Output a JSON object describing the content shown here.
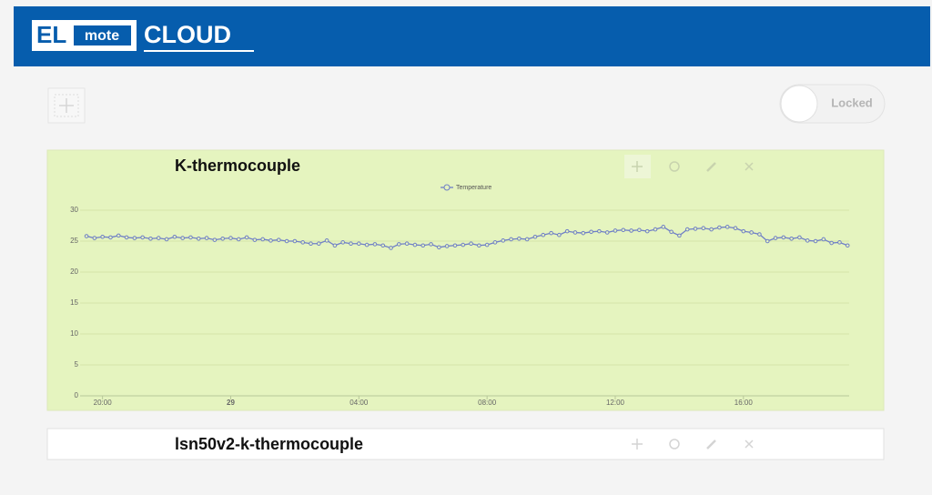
{
  "header": {
    "logo_el": "EL",
    "logo_mote": "mote",
    "logo_cloud": "CLOUD"
  },
  "lock_label": "Locked",
  "widgets": [
    {
      "title": "K-thermocouple"
    },
    {
      "title": "lsn50v2-k-thermocouple"
    }
  ],
  "chart_data": {
    "type": "line",
    "series": [
      {
        "name": "Temperature",
        "color": "#6f7fc6",
        "x": [
          19.5,
          19.75,
          20,
          20.25,
          20.5,
          20.75,
          21,
          21.25,
          21.5,
          21.75,
          22,
          22.25,
          22.5,
          22.75,
          23,
          23.25,
          23.5,
          23.75,
          24,
          24.25,
          24.5,
          24.75,
          25,
          25.25,
          25.5,
          25.75,
          26,
          26.25,
          26.5,
          26.75,
          27,
          27.25,
          27.5,
          27.75,
          28,
          28.25,
          28.5,
          28.75,
          29,
          29.25,
          29.5,
          29.75,
          30,
          30.25,
          30.5,
          30.75,
          31,
          31.25,
          31.5,
          31.75,
          32,
          32.25,
          32.5,
          32.75,
          33,
          33.25,
          33.5,
          33.75,
          34,
          34.25,
          34.5,
          34.75,
          35,
          35.25,
          35.5,
          35.75,
          36,
          36.25,
          36.5,
          36.75,
          37,
          37.25,
          37.5,
          37.75,
          38,
          38.25,
          38.5,
          38.75,
          39,
          39.25,
          39.5,
          39.75,
          40,
          40.25,
          40.5,
          40.75,
          41,
          41.25,
          41.5,
          41.75,
          42,
          42.25,
          42.5,
          42.75,
          43,
          43.25
        ],
        "values": [
          25.8,
          25.5,
          25.7,
          25.6,
          25.9,
          25.6,
          25.5,
          25.6,
          25.4,
          25.5,
          25.3,
          25.7,
          25.5,
          25.6,
          25.4,
          25.5,
          25.2,
          25.4,
          25.5,
          25.3,
          25.6,
          25.2,
          25.3,
          25.1,
          25.2,
          25.0,
          25.0,
          24.8,
          24.6,
          24.6,
          25.1,
          24.3,
          24.8,
          24.6,
          24.6,
          24.4,
          24.5,
          24.3,
          23.9,
          24.5,
          24.6,
          24.4,
          24.3,
          24.5,
          24.0,
          24.2,
          24.3,
          24.4,
          24.6,
          24.3,
          24.4,
          24.8,
          25.1,
          25.3,
          25.4,
          25.3,
          25.7,
          26.0,
          26.3,
          26.0,
          26.6,
          26.4,
          26.3,
          26.5,
          26.6,
          26.4,
          26.7,
          26.8,
          26.7,
          26.8,
          26.6,
          26.9,
          27.3,
          26.5,
          25.9,
          26.9,
          27.0,
          27.1,
          26.9,
          27.2,
          27.3,
          27.1,
          26.6,
          26.4,
          26.1,
          25.0,
          25.5,
          25.6,
          25.4,
          25.6,
          25.1,
          25.0,
          25.3,
          24.7,
          24.8,
          24.3
        ]
      }
    ],
    "xlim": [
      19.3,
      43.3
    ],
    "xticks": [
      {
        "value": 20,
        "label": "20:00"
      },
      {
        "value": 24,
        "label": "29"
      },
      {
        "value": 28,
        "label": "04:00"
      },
      {
        "value": 32,
        "label": "08:00"
      },
      {
        "value": 36,
        "label": "12:00"
      },
      {
        "value": 40,
        "label": "16:00"
      }
    ],
    "ylim": [
      0,
      30
    ],
    "yticks": [
      0,
      5,
      10,
      15,
      20,
      25,
      30
    ],
    "grid": true
  }
}
